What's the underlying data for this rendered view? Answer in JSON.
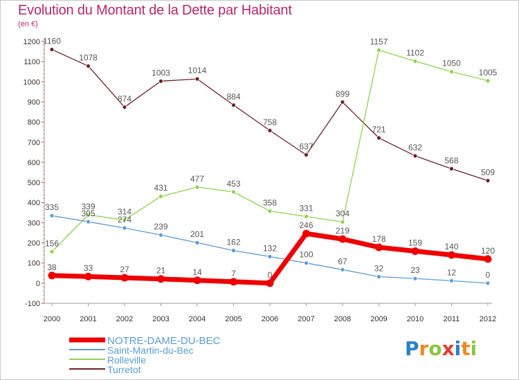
{
  "header": {
    "title": "Evolution du Montant de la Dette par Habitant",
    "subtitle": "(en €)"
  },
  "logo": {
    "text": "Proxiti",
    "letters": [
      {
        "ch": "P",
        "color": "#2b7fc9"
      },
      {
        "ch": "r",
        "color": "#f08a1c"
      },
      {
        "ch": "o",
        "color": "#8cc63f"
      },
      {
        "ch": "x",
        "color": "#e53935"
      },
      {
        "ch": "i",
        "color": "#2b7fc9"
      },
      {
        "ch": "t",
        "color": "#f08a1c"
      },
      {
        "ch": "i",
        "color": "#8cc63f"
      }
    ]
  },
  "chart_data": {
    "type": "line",
    "title": "Evolution du Montant de la Dette par Habitant",
    "subtitle": "(en €)",
    "xlabel": "",
    "ylabel": "",
    "categories": [
      "2000",
      "2001",
      "2002",
      "2003",
      "2004",
      "2005",
      "2006",
      "2007",
      "2008",
      "2009",
      "2010",
      "2011",
      "2012"
    ],
    "ylim": [
      -100,
      1200
    ],
    "yticks": [
      -100,
      0,
      100,
      200,
      300,
      400,
      500,
      600,
      700,
      800,
      900,
      1000,
      1100,
      1200
    ],
    "grid": false,
    "legend_position": "bottom-left",
    "series": [
      {
        "name": "NOTRE-DAME-DU-BEC",
        "color": "#ee0000",
        "emphasis": true,
        "values": [
          38,
          33,
          27,
          21,
          14,
          7,
          0,
          246,
          219,
          178,
          159,
          140,
          120
        ]
      },
      {
        "name": "Saint-Martin-du-Bec",
        "color": "#5b9bd5",
        "emphasis": false,
        "values": [
          335,
          305,
          274,
          239,
          201,
          162,
          132,
          100,
          67,
          32,
          23,
          12,
          0
        ]
      },
      {
        "name": "Rolleville",
        "color": "#8fd14f",
        "emphasis": false,
        "values": [
          156,
          339,
          314,
          431,
          477,
          453,
          358,
          331,
          304,
          1157,
          1102,
          1050,
          1005
        ]
      },
      {
        "name": "Turretot",
        "color": "#6b1f2a",
        "emphasis": false,
        "values": [
          1160,
          1078,
          874,
          1003,
          1014,
          884,
          758,
          637,
          899,
          721,
          632,
          568,
          509
        ]
      }
    ],
    "label_colors": {
      "text": "#555555",
      "axis": "#333333",
      "legend_emphasis": "#5b9bd5"
    }
  }
}
